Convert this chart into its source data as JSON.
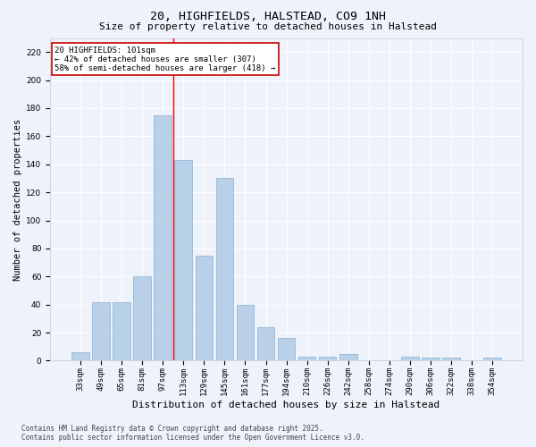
{
  "title": "20, HIGHFIELDS, HALSTEAD, CO9 1NH",
  "subtitle": "Size of property relative to detached houses in Halstead",
  "xlabel": "Distribution of detached houses by size in Halstead",
  "ylabel": "Number of detached properties",
  "categories": [
    "33sqm",
    "49sqm",
    "65sqm",
    "81sqm",
    "97sqm",
    "113sqm",
    "129sqm",
    "145sqm",
    "161sqm",
    "177sqm",
    "194sqm",
    "210sqm",
    "226sqm",
    "242sqm",
    "258sqm",
    "274sqm",
    "290sqm",
    "306sqm",
    "322sqm",
    "338sqm",
    "354sqm"
  ],
  "values": [
    6,
    42,
    42,
    60,
    175,
    143,
    75,
    130,
    40,
    24,
    16,
    3,
    3,
    5,
    0,
    0,
    3,
    2,
    2,
    0,
    2
  ],
  "bar_color": "#b8d0e8",
  "bar_edge_color": "#8ab0d0",
  "annotation_text": "20 HIGHFIELDS: 101sqm\n← 42% of detached houses are smaller (307)\n58% of semi-detached houses are larger (418) →",
  "annotation_box_color": "#ffffff",
  "annotation_box_edge_color": "#cc0000",
  "footnote_line1": "Contains HM Land Registry data © Crown copyright and database right 2025.",
  "footnote_line2": "Contains public sector information licensed under the Open Government Licence v3.0.",
  "ylim": [
    0,
    230
  ],
  "yticks": [
    0,
    20,
    40,
    60,
    80,
    100,
    120,
    140,
    160,
    180,
    200,
    220
  ],
  "background_color": "#eef2fa",
  "grid_color": "#ffffff",
  "title_fontsize": 9.5,
  "subtitle_fontsize": 8,
  "ylabel_fontsize": 7.5,
  "xlabel_fontsize": 8,
  "tick_fontsize": 6.5,
  "annot_fontsize": 6.5,
  "footnote_fontsize": 5.5
}
